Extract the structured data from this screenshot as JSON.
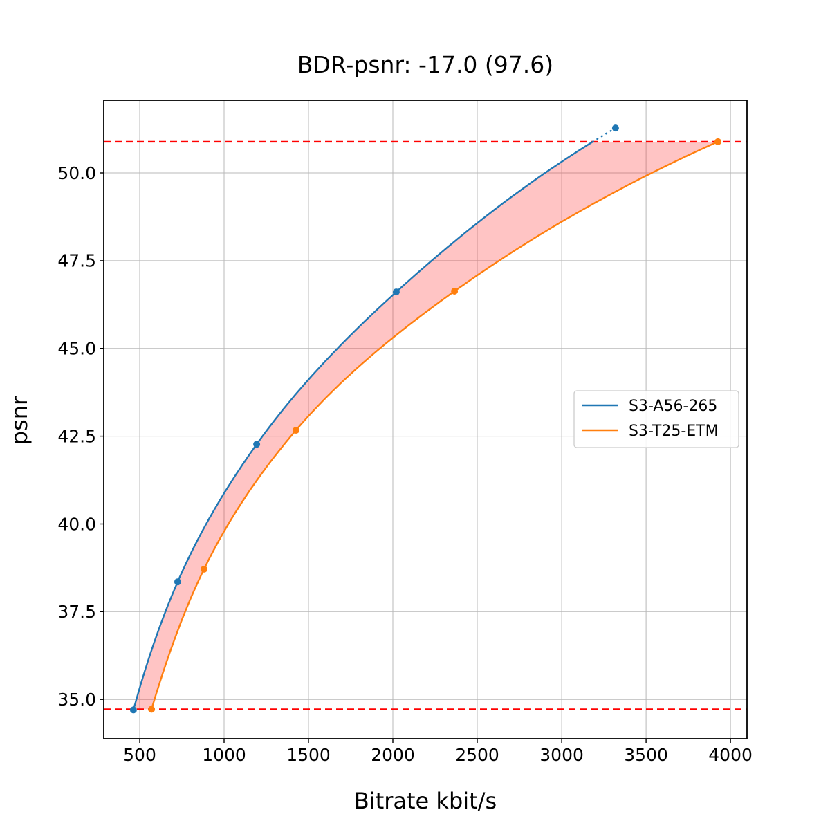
{
  "chart_data": {
    "type": "line",
    "title": "BDR-psnr: -17.0 (97.6)",
    "xlabel": "Bitrate kbit/s",
    "ylabel": "psnr",
    "xlim": [
      287,
      4098
    ],
    "ylim": [
      33.88,
      52.07
    ],
    "x_ticks": [
      500,
      1000,
      1500,
      2000,
      2500,
      3000,
      3500,
      4000
    ],
    "y_ticks": [
      35.0,
      37.5,
      40.0,
      42.5,
      45.0,
      47.5,
      50.0
    ],
    "grid": true,
    "grid_color": "#b8b8b8",
    "legend_position": "center right",
    "series": [
      {
        "name": "S3-A56-265",
        "color": "#1f77b4",
        "x": [
          463,
          725,
          1193,
          2020,
          3319
        ],
        "y": [
          34.7,
          38.35,
          42.27,
          46.61,
          51.28
        ]
      },
      {
        "name": "S3-T25-ETM",
        "color": "#ff7f0e",
        "x": [
          570,
          881,
          1426,
          2365,
          3926
        ],
        "y": [
          34.72,
          38.71,
          42.67,
          46.63,
          50.89
        ]
      }
    ],
    "overlap_bounds": {
      "low_psnr": 34.72,
      "high_psnr": 50.89,
      "line_color": "#ff0000",
      "line_style": "dashed"
    },
    "fill_between_color": "rgba(255,60,60,0.3)"
  }
}
